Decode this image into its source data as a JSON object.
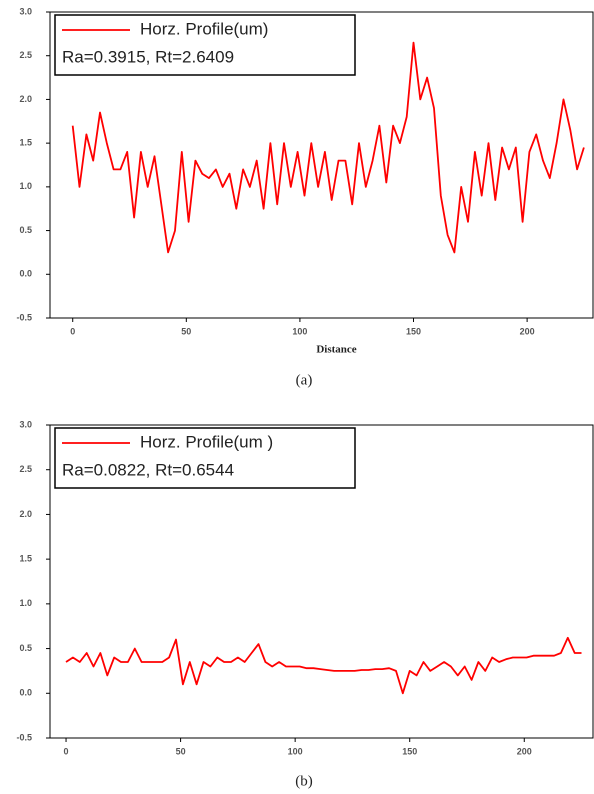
{
  "chart_data": [
    {
      "type": "line",
      "x": [
        0,
        3,
        6,
        9,
        12,
        15,
        18,
        21,
        24,
        27,
        30,
        33,
        36,
        39,
        42,
        45,
        48,
        51,
        54,
        57,
        60,
        63,
        66,
        69,
        72,
        75,
        78,
        81,
        84,
        87,
        90,
        93,
        96,
        99,
        102,
        105,
        108,
        111,
        114,
        117,
        120,
        123,
        126,
        129,
        132,
        135,
        138,
        141,
        144,
        147,
        150,
        153,
        156,
        159,
        162,
        165,
        168,
        171,
        174,
        177,
        180,
        183,
        186,
        189,
        192,
        195,
        198,
        201,
        204,
        207,
        210,
        213,
        216,
        219,
        222,
        225
      ],
      "series": [
        {
          "name": "Horz. Profile(um)",
          "color": "#ff0000",
          "values": [
            1.7,
            1.0,
            1.6,
            1.3,
            1.85,
            1.5,
            1.2,
            1.2,
            1.4,
            0.65,
            1.4,
            1.0,
            1.35,
            0.8,
            0.25,
            0.5,
            1.4,
            0.6,
            1.3,
            1.15,
            1.1,
            1.2,
            1.0,
            1.15,
            0.75,
            1.2,
            1.0,
            1.3,
            0.75,
            1.5,
            0.8,
            1.5,
            1.0,
            1.4,
            0.9,
            1.5,
            1.0,
            1.4,
            0.85,
            1.3,
            1.3,
            0.8,
            1.5,
            1.0,
            1.3,
            1.7,
            1.05,
            1.7,
            1.5,
            1.8,
            2.65,
            2.0,
            2.25,
            1.9,
            0.9,
            0.45,
            0.25,
            1.0,
            0.6,
            1.4,
            0.9,
            1.5,
            0.85,
            1.45,
            1.2,
            1.45,
            0.6,
            1.4,
            1.6,
            1.3,
            1.1,
            1.5,
            2.0,
            1.65,
            1.2,
            1.45
          ]
        }
      ],
      "annotation": "Ra=0.3915, Rt=2.6409",
      "xlabel": "Distance",
      "caption": "(a)",
      "xlim": [
        -10,
        229
      ],
      "ylim": [
        -0.5,
        3.0
      ],
      "xticks": [
        0,
        50,
        100,
        150,
        200
      ],
      "yticks": [
        -0.5,
        {
          "value": 0,
          "label": "0.0"
        },
        0.5,
        {
          "value": 1,
          "label": "1.0"
        },
        1.5,
        {
          "value": 2,
          "label": "2.0"
        },
        2.5,
        {
          "value": 3,
          "label": "3.0"
        }
      ]
    },
    {
      "type": "line",
      "x": [
        0,
        3,
        6,
        9,
        12,
        15,
        18,
        21,
        24,
        27,
        30,
        33,
        36,
        39,
        42,
        45,
        48,
        51,
        54,
        57,
        60,
        63,
        66,
        69,
        72,
        75,
        78,
        81,
        84,
        87,
        90,
        93,
        96,
        99,
        102,
        105,
        108,
        111,
        114,
        117,
        120,
        123,
        126,
        129,
        132,
        135,
        138,
        141,
        144,
        147,
        150,
        153,
        156,
        159,
        162,
        165,
        168,
        171,
        174,
        177,
        180,
        183,
        186,
        189,
        192,
        195,
        198,
        201,
        204,
        207,
        210,
        213,
        216,
        219,
        222,
        225
      ],
      "series": [
        {
          "name": "Horz. Profile(um )",
          "color": "#ff0000",
          "values": [
            0.35,
            0.4,
            0.35,
            0.45,
            0.3,
            0.45,
            0.2,
            0.4,
            0.35,
            0.35,
            0.5,
            0.35,
            0.35,
            0.35,
            0.35,
            0.4,
            0.6,
            0.1,
            0.35,
            0.1,
            0.35,
            0.3,
            0.4,
            0.35,
            0.35,
            0.4,
            0.35,
            0.45,
            0.55,
            0.35,
            0.3,
            0.35,
            0.3,
            0.3,
            0.3,
            0.28,
            0.28,
            0.27,
            0.26,
            0.25,
            0.25,
            0.25,
            0.25,
            0.26,
            0.26,
            0.27,
            0.27,
            0.28,
            0.25,
            0.0,
            0.25,
            0.2,
            0.35,
            0.25,
            0.3,
            0.35,
            0.3,
            0.2,
            0.3,
            0.15,
            0.35,
            0.25,
            0.4,
            0.35,
            0.38,
            0.4,
            0.4,
            0.4,
            0.42,
            0.42,
            0.42,
            0.42,
            0.45,
            0.62,
            0.45,
            0.45
          ]
        }
      ],
      "annotation": "Ra=0.0822, Rt=0.6544",
      "caption": "(b)",
      "xlim": [
        -7,
        230
      ],
      "ylim": [
        -0.5,
        3.0
      ],
      "xticks": [
        0,
        50,
        100,
        150,
        200
      ],
      "yticks": [
        -0.5,
        {
          "value": 0,
          "label": "0.0"
        },
        0.5,
        {
          "value": 1,
          "label": "1.0"
        },
        1.5,
        {
          "value": 2,
          "label": "2.0"
        },
        2.5,
        {
          "value": 3,
          "label": "3.0"
        }
      ]
    }
  ]
}
